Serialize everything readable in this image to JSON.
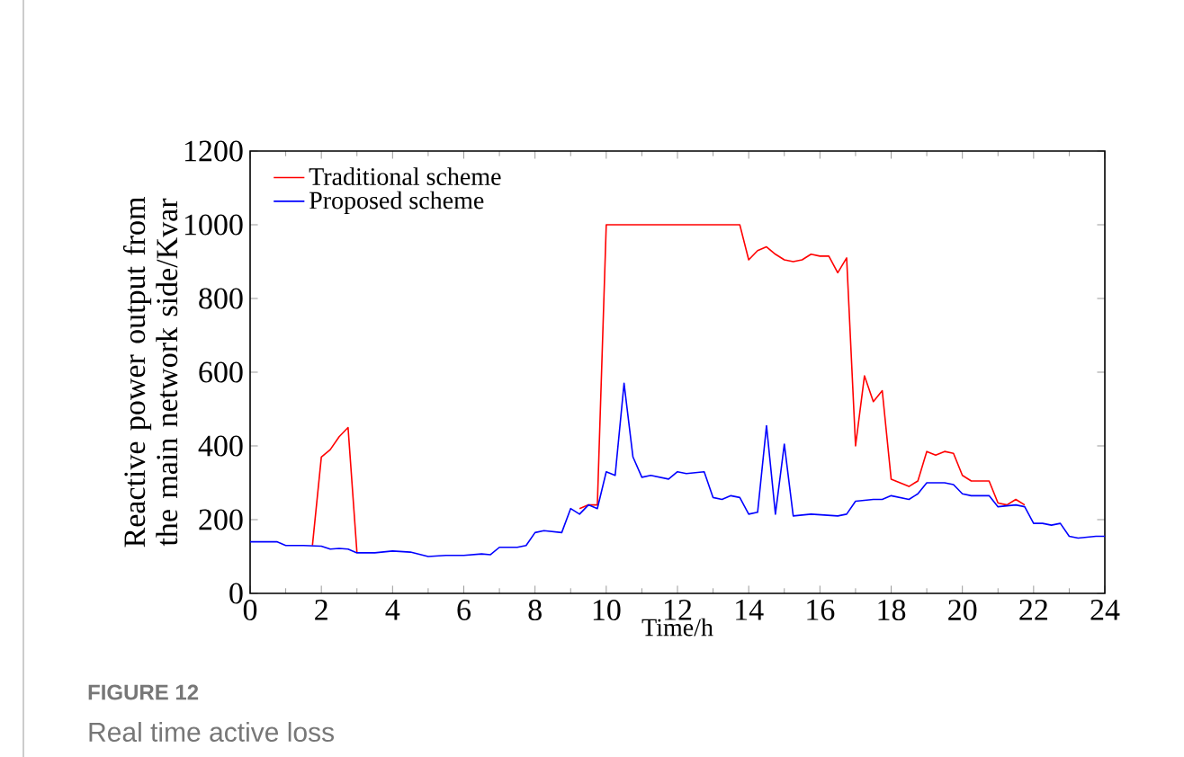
{
  "chart_data": {
    "type": "line",
    "title": "FIGURE 12",
    "subtitle": "Real time active loss",
    "xlabel": "Time/h",
    "ylabel": "Reactive power output from the main network side/Kvar",
    "xlim": [
      0,
      24
    ],
    "ylim": [
      0,
      1200
    ],
    "xticks": [
      0,
      2,
      4,
      6,
      8,
      10,
      12,
      14,
      16,
      18,
      20,
      22,
      24
    ],
    "yticks": [
      0,
      200,
      400,
      600,
      800,
      1000,
      1200
    ],
    "legend": "top left",
    "grid": false,
    "marker": "none",
    "line_style": "solid",
    "series": [
      {
        "name": "Traditional scheme",
        "color": "#ff0000",
        "x": [
          1.75,
          2,
          2.25,
          2.5,
          2.75,
          3,
          6,
          9.25,
          9.5,
          9.75,
          10,
          13.75,
          14,
          14.25,
          14.5,
          14.75,
          15,
          15.25,
          15.5,
          15.75,
          16,
          16.25,
          16.5,
          16.75,
          17,
          17.25,
          17.5,
          17.75,
          18,
          18.5,
          18.75,
          19,
          19.25,
          19.5,
          19.75,
          20,
          20.25,
          20.75,
          21,
          21.25,
          21.5,
          21.75
        ],
        "values": [
          130,
          370,
          390,
          425,
          450,
          110,
          null,
          230,
          240,
          240,
          1000,
          1000,
          905,
          930,
          940,
          920,
          905,
          900,
          905,
          920,
          915,
          915,
          870,
          910,
          400,
          590,
          520,
          550,
          310,
          290,
          305,
          385,
          375,
          385,
          380,
          320,
          305,
          305,
          245,
          240,
          255,
          240
        ]
      },
      {
        "name": "Proposed scheme",
        "color": "#0000ff",
        "x": [
          0,
          0.5,
          0.75,
          1,
          1.5,
          2,
          2.25,
          2.5,
          2.75,
          3,
          3.5,
          4,
          4.5,
          5,
          5.5,
          6,
          6.5,
          6.75,
          7,
          7.5,
          7.75,
          8,
          8.25,
          8.75,
          9,
          9.25,
          9.5,
          9.75,
          10,
          10.25,
          10.5,
          10.75,
          11,
          11.25,
          11.75,
          12,
          12.25,
          12.75,
          13,
          13.25,
          13.5,
          13.75,
          14,
          14.25,
          14.5,
          14.75,
          15,
          15.25,
          15.75,
          16.5,
          16.75,
          17,
          17.5,
          17.75,
          18,
          18.5,
          18.75,
          19,
          19.5,
          19.75,
          20,
          20.25,
          20.75,
          21,
          21.5,
          21.75,
          22,
          22.25,
          22.5,
          22.75,
          23,
          23.25,
          23.75,
          24
        ],
        "values": [
          140,
          140,
          140,
          130,
          130,
          128,
          120,
          122,
          120,
          110,
          110,
          115,
          112,
          100,
          103,
          103,
          107,
          105,
          125,
          125,
          130,
          165,
          170,
          165,
          230,
          215,
          240,
          230,
          330,
          320,
          570,
          370,
          315,
          320,
          310,
          330,
          325,
          330,
          260,
          255,
          265,
          260,
          215,
          220,
          455,
          215,
          405,
          210,
          215,
          210,
          215,
          250,
          255,
          255,
          265,
          255,
          270,
          300,
          300,
          295,
          270,
          265,
          265,
          235,
          240,
          235,
          190,
          190,
          185,
          190,
          155,
          150,
          155,
          155
        ]
      }
    ]
  }
}
